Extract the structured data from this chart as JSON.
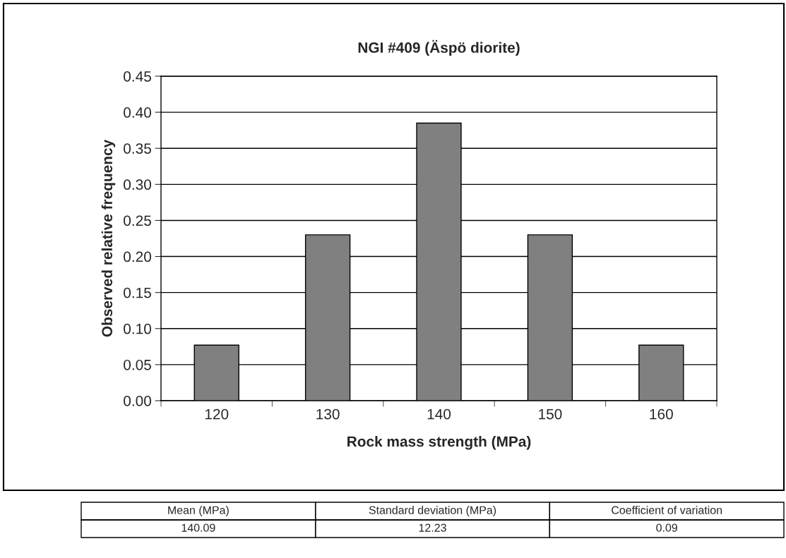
{
  "chart_data": {
    "type": "bar",
    "title": "NGI #409 (Äspö diorite)",
    "xlabel": "Rock mass strength (MPa)",
    "ylabel": "Observed relative frequency",
    "categories": [
      "120",
      "130",
      "140",
      "150",
      "160"
    ],
    "values": [
      0.077,
      0.23,
      0.385,
      0.23,
      0.077
    ],
    "color": "#808080",
    "ylim": [
      0,
      0.45
    ],
    "yticks": [
      {
        "value": 0,
        "label": "0.00"
      },
      {
        "value": 0.05,
        "label": "0.05"
      },
      {
        "value": 0.1,
        "label": "0.10"
      },
      {
        "value": 0.15,
        "label": "0.15"
      },
      {
        "value": 0.2,
        "label": "0.20"
      },
      {
        "value": 0.25,
        "label": "0.25"
      },
      {
        "value": 0.3,
        "label": "0.30"
      },
      {
        "value": 0.35,
        "label": "0.35"
      },
      {
        "value": 0.4,
        "label": "0.40"
      },
      {
        "value": 0.45,
        "label": "0.45"
      }
    ],
    "grid": "y",
    "legend": false,
    "annotations": [
      "Mean (MPa)",
      "Standard deviation (MPa)",
      "Coefficient of variation",
      "140.09",
      "12.23",
      "0.09"
    ]
  }
}
